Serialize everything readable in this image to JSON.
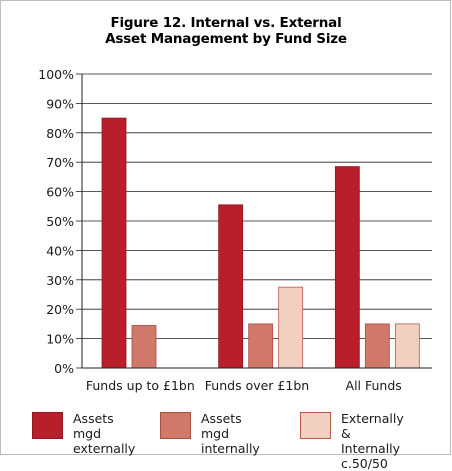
{
  "chart_data": {
    "type": "bar",
    "title": "Figure 12. Internal vs. External",
    "subtitle": "Asset Management by Fund Size",
    "categories": [
      "Funds up to £1bn",
      "Funds over £1bn",
      "All Funds"
    ],
    "series": [
      {
        "name": "Assets mgd\nexternally",
        "values": [
          85,
          55.5,
          68.5
        ],
        "color": "#b81f2a",
        "stroke": "#8f1720"
      },
      {
        "name": "Assets mgd\ninternally",
        "values": [
          14.5,
          15,
          15
        ],
        "color": "#d0796a",
        "stroke": "#a84f44"
      },
      {
        "name": "Externally &\nInternally c.50/50",
        "values": [
          null,
          27.5,
          15
        ],
        "color": "#f1cfc1",
        "stroke": "#b8594d"
      }
    ],
    "y_ticks": [
      "0%",
      "10%",
      "20%",
      "30%",
      "40%",
      "50%",
      "60%",
      "70%",
      "80%",
      "90%",
      "100%"
    ],
    "ylim": [
      0,
      100
    ],
    "xlabel": "",
    "ylabel": "",
    "grid": true,
    "legend_position": "bottom"
  }
}
